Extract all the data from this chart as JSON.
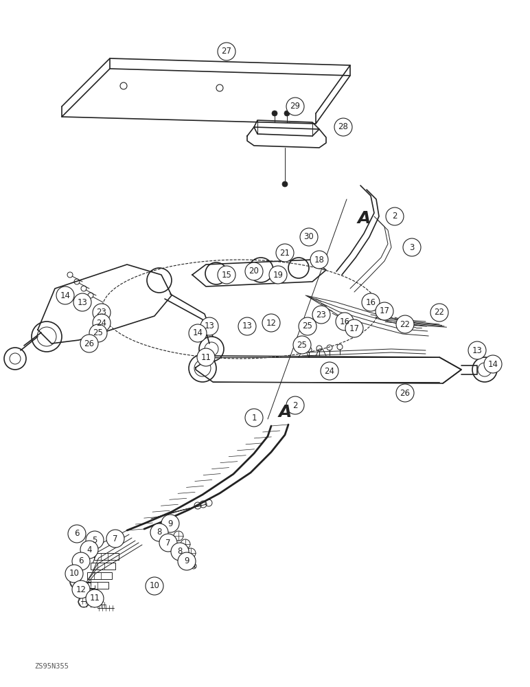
{
  "bg_color": "#ffffff",
  "line_color": "#222222",
  "watermark": "ZS95N355",
  "fig_width": 7.72,
  "fig_height": 10.0,
  "dpi": 100
}
